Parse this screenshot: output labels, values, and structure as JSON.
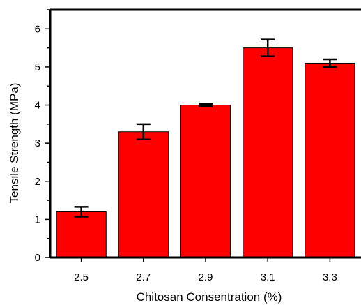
{
  "chart_data": {
    "type": "bar",
    "title": "",
    "xlabel": "Chitosan Consentration (%)",
    "ylabel": "Tensile Strength (MPa)",
    "categories": [
      "2.5",
      "2.7",
      "2.9",
      "3.1",
      "3.3"
    ],
    "values": [
      1.2,
      3.3,
      4.0,
      5.5,
      5.1
    ],
    "error": [
      0.13,
      0.2,
      0.03,
      0.22,
      0.1
    ],
    "ylim": [
      0,
      6.5
    ],
    "yticks": [
      "0",
      "1",
      "2",
      "3",
      "4",
      "5",
      "6"
    ],
    "grid": false,
    "legend": "none",
    "bar_color": "#ff0000",
    "edge_color": "#000000"
  }
}
